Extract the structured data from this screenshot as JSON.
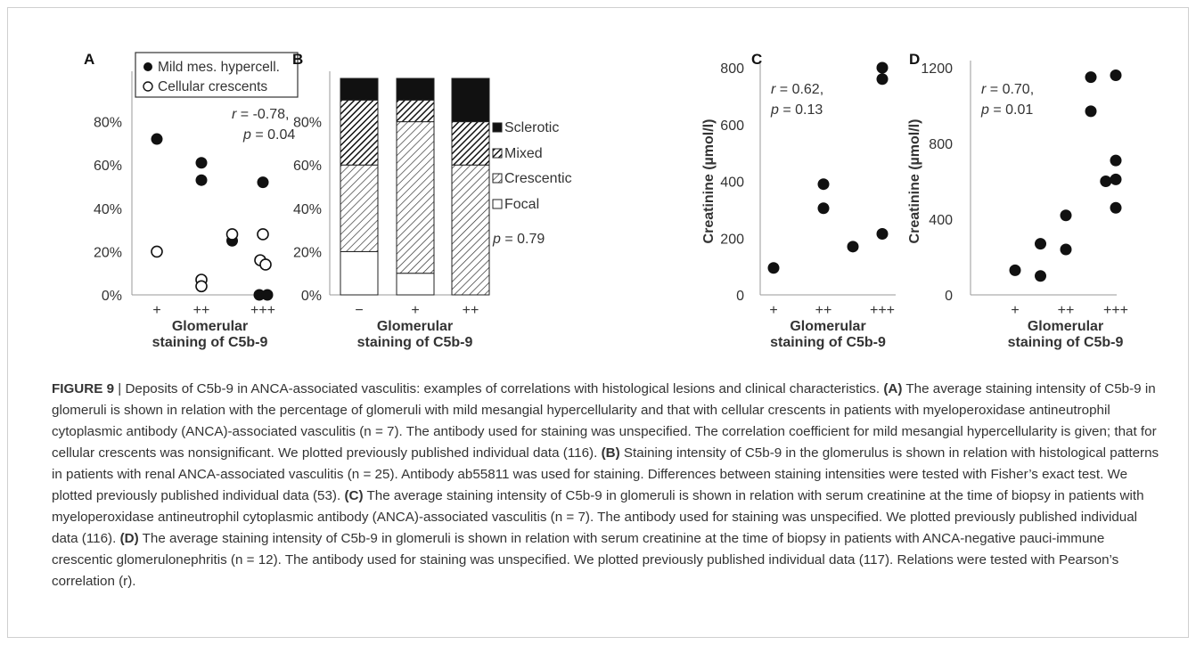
{
  "chart_data": [
    {
      "panel": "A",
      "type": "scatter",
      "xlabel_line1": "Glomerular",
      "xlabel_line2": "staining of C5b-9",
      "categories": [
        "+",
        "++",
        "+++"
      ],
      "yticks": [
        "0%",
        "20%",
        "40%",
        "60%",
        "80%"
      ],
      "ylim": [
        0,
        1.0
      ],
      "legend": [
        "Mild mes. hypercell.",
        "Cellular crescents"
      ],
      "legend_position": "top-left",
      "annotation_line1": "r = -0.78,",
      "annotation_line2": "p = 0.04",
      "series": [
        {
          "name": "Mild mes. hypercell.",
          "marker": "filled",
          "points": [
            [
              1,
              0.72
            ],
            [
              2,
              0.61
            ],
            [
              2,
              0.53
            ],
            [
              2.5,
              0.25
            ],
            [
              3,
              0.52
            ],
            [
              3,
              0.0
            ],
            [
              3,
              0.0
            ]
          ]
        },
        {
          "name": "Cellular crescents",
          "marker": "open",
          "points": [
            [
              1,
              0.2
            ],
            [
              2,
              0.07
            ],
            [
              2,
              0.04
            ],
            [
              2.5,
              0.28
            ],
            [
              3,
              0.28
            ],
            [
              3,
              0.16
            ],
            [
              3,
              0.14
            ]
          ]
        }
      ]
    },
    {
      "panel": "B",
      "type": "bar",
      "stacked": true,
      "xlabel_line1": "Glomerular",
      "xlabel_line2": "staining of C5b-9",
      "categories": [
        "−",
        "+",
        "++"
      ],
      "yticks": [
        "0%",
        "20%",
        "40%",
        "60%",
        "80%"
      ],
      "ylim": [
        0,
        1.0
      ],
      "legend": [
        "Sclerotic",
        "Mixed",
        "Crescentic",
        "Focal"
      ],
      "legend_position": "right",
      "annotation": "p = 0.79",
      "series": [
        {
          "name": "Focal",
          "values": [
            0.2,
            0.1,
            0.0
          ]
        },
        {
          "name": "Crescentic",
          "values": [
            0.4,
            0.7,
            0.6
          ]
        },
        {
          "name": "Mixed",
          "values": [
            0.3,
            0.1,
            0.2
          ]
        },
        {
          "name": "Sclerotic",
          "values": [
            0.1,
            0.1,
            0.2
          ]
        }
      ]
    },
    {
      "panel": "C",
      "type": "scatter",
      "ylabel": "Creatinine (µmol/l)",
      "xlabel_line1": "Glomerular",
      "xlabel_line2": "staining of C5b-9",
      "categories": [
        "+",
        "++",
        "+++"
      ],
      "yticks": [
        "0",
        "200",
        "400",
        "600",
        "800"
      ],
      "ylim": [
        0,
        800
      ],
      "annotation_line1": "r = 0.62,",
      "annotation_line2": "p = 0.13",
      "points": [
        [
          1,
          95
        ],
        [
          2,
          390
        ],
        [
          2,
          305
        ],
        [
          2.5,
          170
        ],
        [
          3,
          215
        ],
        [
          3,
          760
        ],
        [
          3,
          800
        ]
      ]
    },
    {
      "panel": "D",
      "type": "scatter",
      "ylabel": "Creatinine (µmol/l)",
      "xlabel_line1": "Glomerular",
      "xlabel_line2": "staining of C5b-9",
      "categories": [
        "+",
        "++",
        "+++"
      ],
      "yticks": [
        "0",
        "400",
        "800",
        "1200"
      ],
      "ylim": [
        0,
        1200
      ],
      "annotation_line1": "r = 0.70,",
      "annotation_line2": "p = 0.01",
      "points": [
        [
          1,
          130
        ],
        [
          1.5,
          270
        ],
        [
          1.5,
          100
        ],
        [
          2,
          420
        ],
        [
          2,
          240
        ],
        [
          2.5,
          1150
        ],
        [
          2.5,
          970
        ],
        [
          2.8,
          600
        ],
        [
          3,
          1160
        ],
        [
          3,
          710
        ],
        [
          3,
          610
        ],
        [
          3,
          460
        ]
      ]
    }
  ],
  "caption": {
    "label": "FIGURE 9",
    "separator": " | ",
    "title": "Deposits of C5b-9 in ANCA-associated vasculitis: examples of correlations with histological lesions and clinical characteristics.",
    "A_label": "(A)",
    "A_text": "The average staining intensity of C5b-9 in glomeruli is shown in relation with the percentage of glomeruli with mild mesangial hypercellularity and that with cellular crescents in patients with myeloperoxidase antineutrophil cytoplasmic antibody (ANCA)-associated vasculitis (n = 7). The antibody used for staining was unspecified. The correlation coefficient for mild mesangial hypercellularity is given; that for cellular crescents was nonsignificant. We plotted previously published individual data (116).",
    "B_label": "(B)",
    "B_text": "Staining intensity of C5b-9 in the glomerulus is shown in relation with histological patterns in patients with renal ANCA-associated vasculitis (n = 25). Antibody ab55811 was used for staining. Differences between staining intensities were tested with Fisher’s exact test. We plotted previously published individual data (53).",
    "C_label": "(C)",
    "C_text": "The average staining intensity of C5b-9 in glomeruli is shown in relation with serum creatinine at the time of biopsy in patients with myeloperoxidase antineutrophil cytoplasmic antibody (ANCA)-associated vasculitis (n = 7). The antibody used for staining was unspecified. We plotted previously published individual data (116).",
    "D_label": "(D)",
    "D_text": "The average staining intensity of C5b-9 in glomeruli is shown in relation with serum creatinine at the time of biopsy in patients with ANCA-negative pauci-immune crescentic glomerulonephritis (n = 12). The antibody used for staining was unspecified. We plotted previously published individual data (117). Relations were tested with Pearson’s correlation (r)."
  }
}
